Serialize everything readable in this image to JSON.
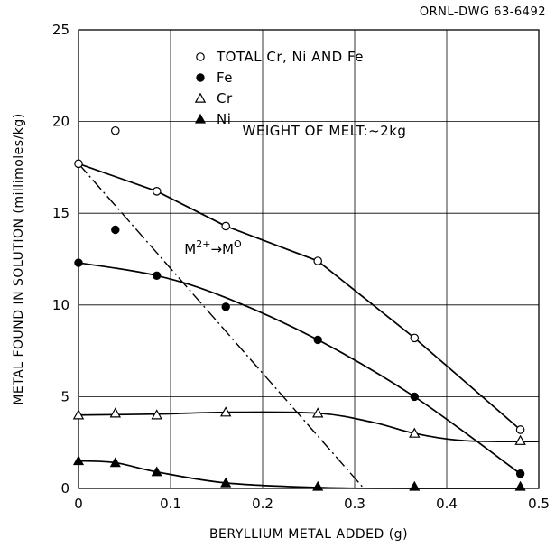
{
  "drawing_id": "ORNL-DWG 63-6492",
  "chart_data": {
    "type": "scatter",
    "xlabel": "BERYLLIUM METAL ADDED (g)",
    "ylabel": "METAL FOUND IN SOLUTION (millimoles/kg)",
    "xlim": [
      0,
      0.5
    ],
    "ylim": [
      0,
      25
    ],
    "x_ticks": [
      0,
      0.1,
      0.2,
      0.3,
      0.4,
      0.5
    ],
    "x_tick_labels": [
      "0",
      "0.1",
      "0.2",
      "0.3",
      "0.4",
      "0.5"
    ],
    "y_ticks": [
      0,
      5,
      10,
      15,
      20,
      25
    ],
    "y_tick_labels": [
      "0",
      "5",
      "10",
      "15",
      "20",
      "25"
    ],
    "grid": true,
    "legend_position": "top-center",
    "series": [
      {
        "name": "TOTAL Cr, Ni AND Fe",
        "marker": "open-circle",
        "x": [
          0,
          0.04,
          0.085,
          0.16,
          0.26,
          0.365,
          0.48
        ],
        "y": [
          17.7,
          19.5,
          16.2,
          14.3,
          12.4,
          8.2,
          3.2
        ],
        "curve_x": [
          0,
          0.085,
          0.16,
          0.26,
          0.365,
          0.48
        ],
        "curve_y": [
          17.7,
          16.2,
          14.3,
          12.4,
          8.2,
          3.2
        ]
      },
      {
        "name": "Fe",
        "marker": "filled-circle",
        "x": [
          0,
          0.04,
          0.085,
          0.16,
          0.26,
          0.365,
          0.48
        ],
        "y": [
          12.3,
          14.1,
          11.6,
          9.9,
          8.1,
          5.0,
          0.8
        ],
        "curve_x": [
          0,
          0.085,
          0.16,
          0.26,
          0.365,
          0.48
        ],
        "curve_y": [
          12.3,
          11.6,
          10.4,
          8.1,
          5.0,
          0.8
        ]
      },
      {
        "name": "Cr",
        "marker": "open-triangle",
        "x": [
          0,
          0.04,
          0.085,
          0.16,
          0.26,
          0.365,
          0.48
        ],
        "y": [
          4.0,
          4.1,
          4.0,
          4.15,
          4.1,
          3.0,
          2.6
        ],
        "curve_x": [
          0,
          0.085,
          0.16,
          0.26,
          0.32,
          0.365,
          0.42,
          0.5
        ],
        "curve_y": [
          4.0,
          4.05,
          4.15,
          4.1,
          3.6,
          3.0,
          2.6,
          2.55
        ]
      },
      {
        "name": "Ni",
        "marker": "filled-triangle",
        "x": [
          0,
          0.04,
          0.085,
          0.16,
          0.26,
          0.365,
          0.48
        ],
        "y": [
          1.5,
          1.4,
          0.9,
          0.3,
          0.1,
          0.1,
          0.1
        ],
        "curve_x": [
          0,
          0.04,
          0.085,
          0.16,
          0.26,
          0.365,
          0.48
        ],
        "curve_y": [
          1.5,
          1.4,
          0.9,
          0.3,
          0.05,
          0.0,
          0.0
        ]
      }
    ],
    "reference_line": {
      "style": "dash-dot",
      "x": [
        0,
        0.31
      ],
      "y": [
        17.7,
        0
      ],
      "label_main": "M",
      "label_sup1": "2+",
      "label_arrow": "→",
      "label_end": "M",
      "label_sup2": "O",
      "label_x": 0.115,
      "label_y": 12.8
    },
    "annotations": [
      {
        "text": "WEIGHT OF MELT:~2kg",
        "x": 0.178,
        "y": 19.5
      }
    ]
  }
}
